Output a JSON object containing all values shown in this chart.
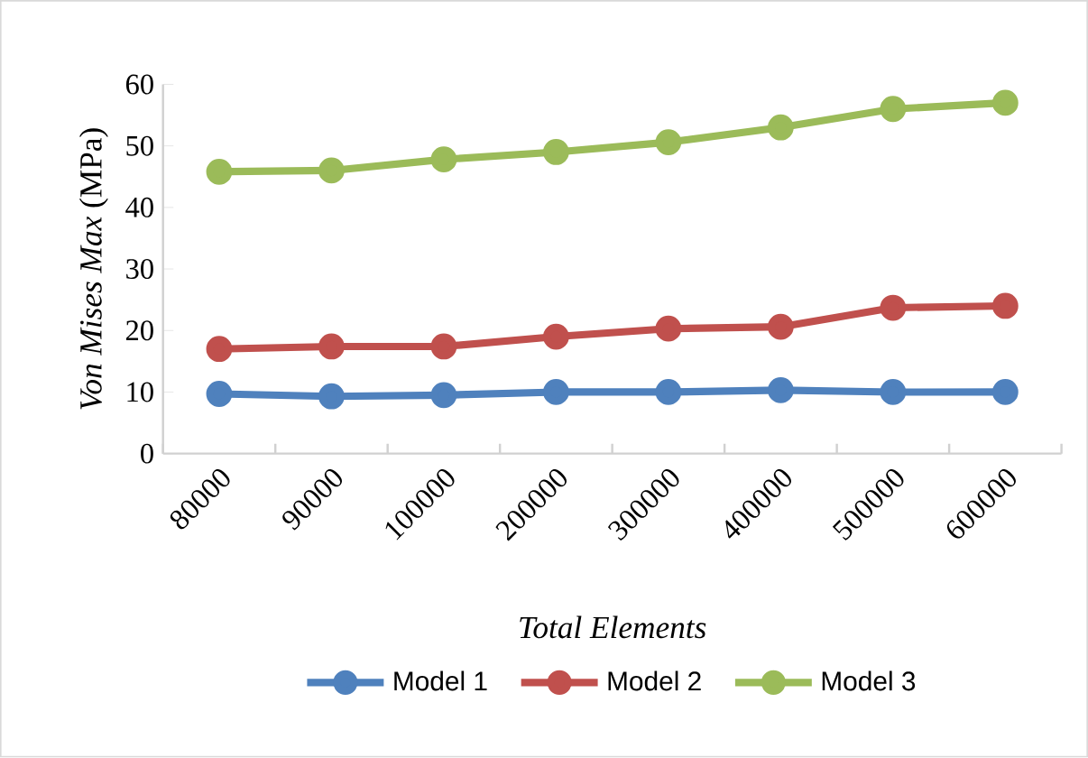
{
  "chart_data": {
    "type": "line",
    "xlabel": "Total Elements",
    "ylabel": "*Von Mises Max* (MPa)",
    "categories": [
      "80000",
      "90000",
      "100000",
      "200000",
      "300000",
      "400000",
      "500000",
      "600000"
    ],
    "series": [
      {
        "name": "Model 1",
        "color": "#4f81bd",
        "values": [
          9.7,
          9.3,
          9.5,
          10,
          10,
          10.3,
          10,
          10
        ]
      },
      {
        "name": "Model 2",
        "color": "#c0504d",
        "values": [
          17,
          17.4,
          17.4,
          19,
          20.3,
          20.6,
          23.7,
          24
        ]
      },
      {
        "name": "Model 3",
        "color": "#9bbb59",
        "values": [
          45.8,
          46,
          47.8,
          49,
          50.6,
          53,
          56,
          57
        ]
      }
    ],
    "ylim": [
      0,
      60
    ],
    "yticks": [
      0,
      10,
      20,
      30,
      40,
      50,
      60
    ],
    "grid": false,
    "legend": "bottom",
    "marker": "circle",
    "line_style": "solid"
  }
}
